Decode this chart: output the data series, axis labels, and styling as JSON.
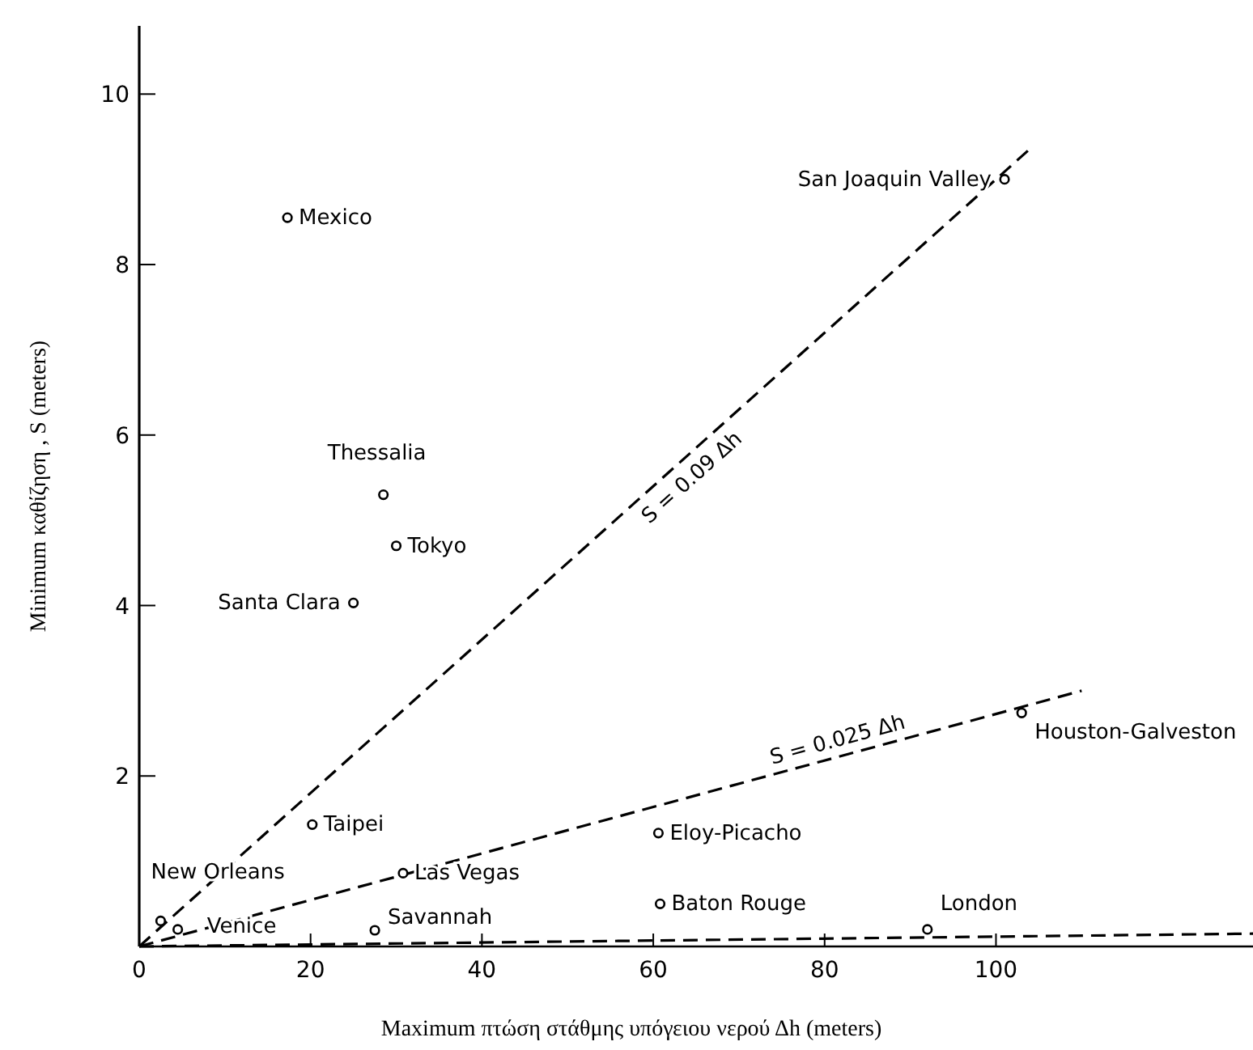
{
  "chart_data": {
    "type": "scatter",
    "xlabel": "Maximum πτώση στάθμης υπόγειου νερού  Δh (meters)",
    "ylabel": "Minimum καθίζηση , S (meters)",
    "xlim": [
      0,
      130
    ],
    "ylim": [
      0,
      10.8
    ],
    "xticks": [
      0,
      20,
      40,
      60,
      80,
      100
    ],
    "yticks": [
      2,
      4,
      6,
      8,
      10
    ],
    "grid": false,
    "marker": "circle",
    "series": [
      {
        "type": "line",
        "color": "#000000",
        "line_style": "dashed",
        "marker": "none",
        "x": [
          0,
          104
        ],
        "values": [
          0,
          9.36
        ]
      },
      {
        "type": "line",
        "color": "#000000",
        "line_style": "dashed",
        "marker": "none",
        "x": [
          0,
          110
        ],
        "values": [
          0,
          3.0
        ]
      },
      {
        "type": "line",
        "color": "#000000",
        "line_style": "dashed",
        "marker": "none",
        "x": [
          0,
          130
        ],
        "values": [
          0,
          0.15
        ]
      },
      {
        "name": "Mexico",
        "color": "#000000",
        "x": [
          17.3
        ],
        "values": [
          8.55
        ]
      },
      {
        "name": "San Joaquin Valley",
        "color": "#000000",
        "x": [
          101
        ],
        "values": [
          9.0
        ]
      },
      {
        "name": "Thessalia",
        "color": "#000000",
        "x": [
          28.5
        ],
        "values": [
          5.3
        ]
      },
      {
        "name": "Tokyo",
        "color": "#000000",
        "x": [
          30
        ],
        "values": [
          4.7
        ]
      },
      {
        "name": "Santa Clara",
        "color": "#000000",
        "x": [
          25
        ],
        "values": [
          4.03
        ]
      },
      {
        "name": "Taipei",
        "color": "#000000",
        "x": [
          20.2
        ],
        "values": [
          1.43
        ]
      },
      {
        "name": "Las Vegas",
        "color": "#000000",
        "x": [
          30.8
        ],
        "values": [
          0.86
        ]
      },
      {
        "name": "New Orleans",
        "color": "#000000",
        "x": [
          2.5
        ],
        "values": [
          0.3
        ]
      },
      {
        "name": "Venice",
        "color": "#000000",
        "x": [
          4.5
        ],
        "values": [
          0.2
        ]
      },
      {
        "name": "Savannah",
        "color": "#000000",
        "x": [
          27.5
        ],
        "values": [
          0.19
        ]
      },
      {
        "name": "Eloy-Picacho",
        "color": "#000000",
        "x": [
          60.6
        ],
        "values": [
          1.33
        ]
      },
      {
        "name": "Baton Rouge",
        "color": "#000000",
        "x": [
          60.8
        ],
        "values": [
          0.5
        ]
      },
      {
        "name": "London",
        "color": "#000000",
        "x": [
          92
        ],
        "values": [
          0.2
        ]
      },
      {
        "name": "Houston-Galveston",
        "color": "#000000",
        "x": [
          103
        ],
        "values": [
          2.74
        ]
      }
    ],
    "annotations": [
      {
        "text": "S = 0.09 Δh",
        "x": 63,
        "y": 5.67
      },
      {
        "text": "S = 0.025 Δh",
        "x": 82,
        "y": 2.24
      }
    ]
  }
}
